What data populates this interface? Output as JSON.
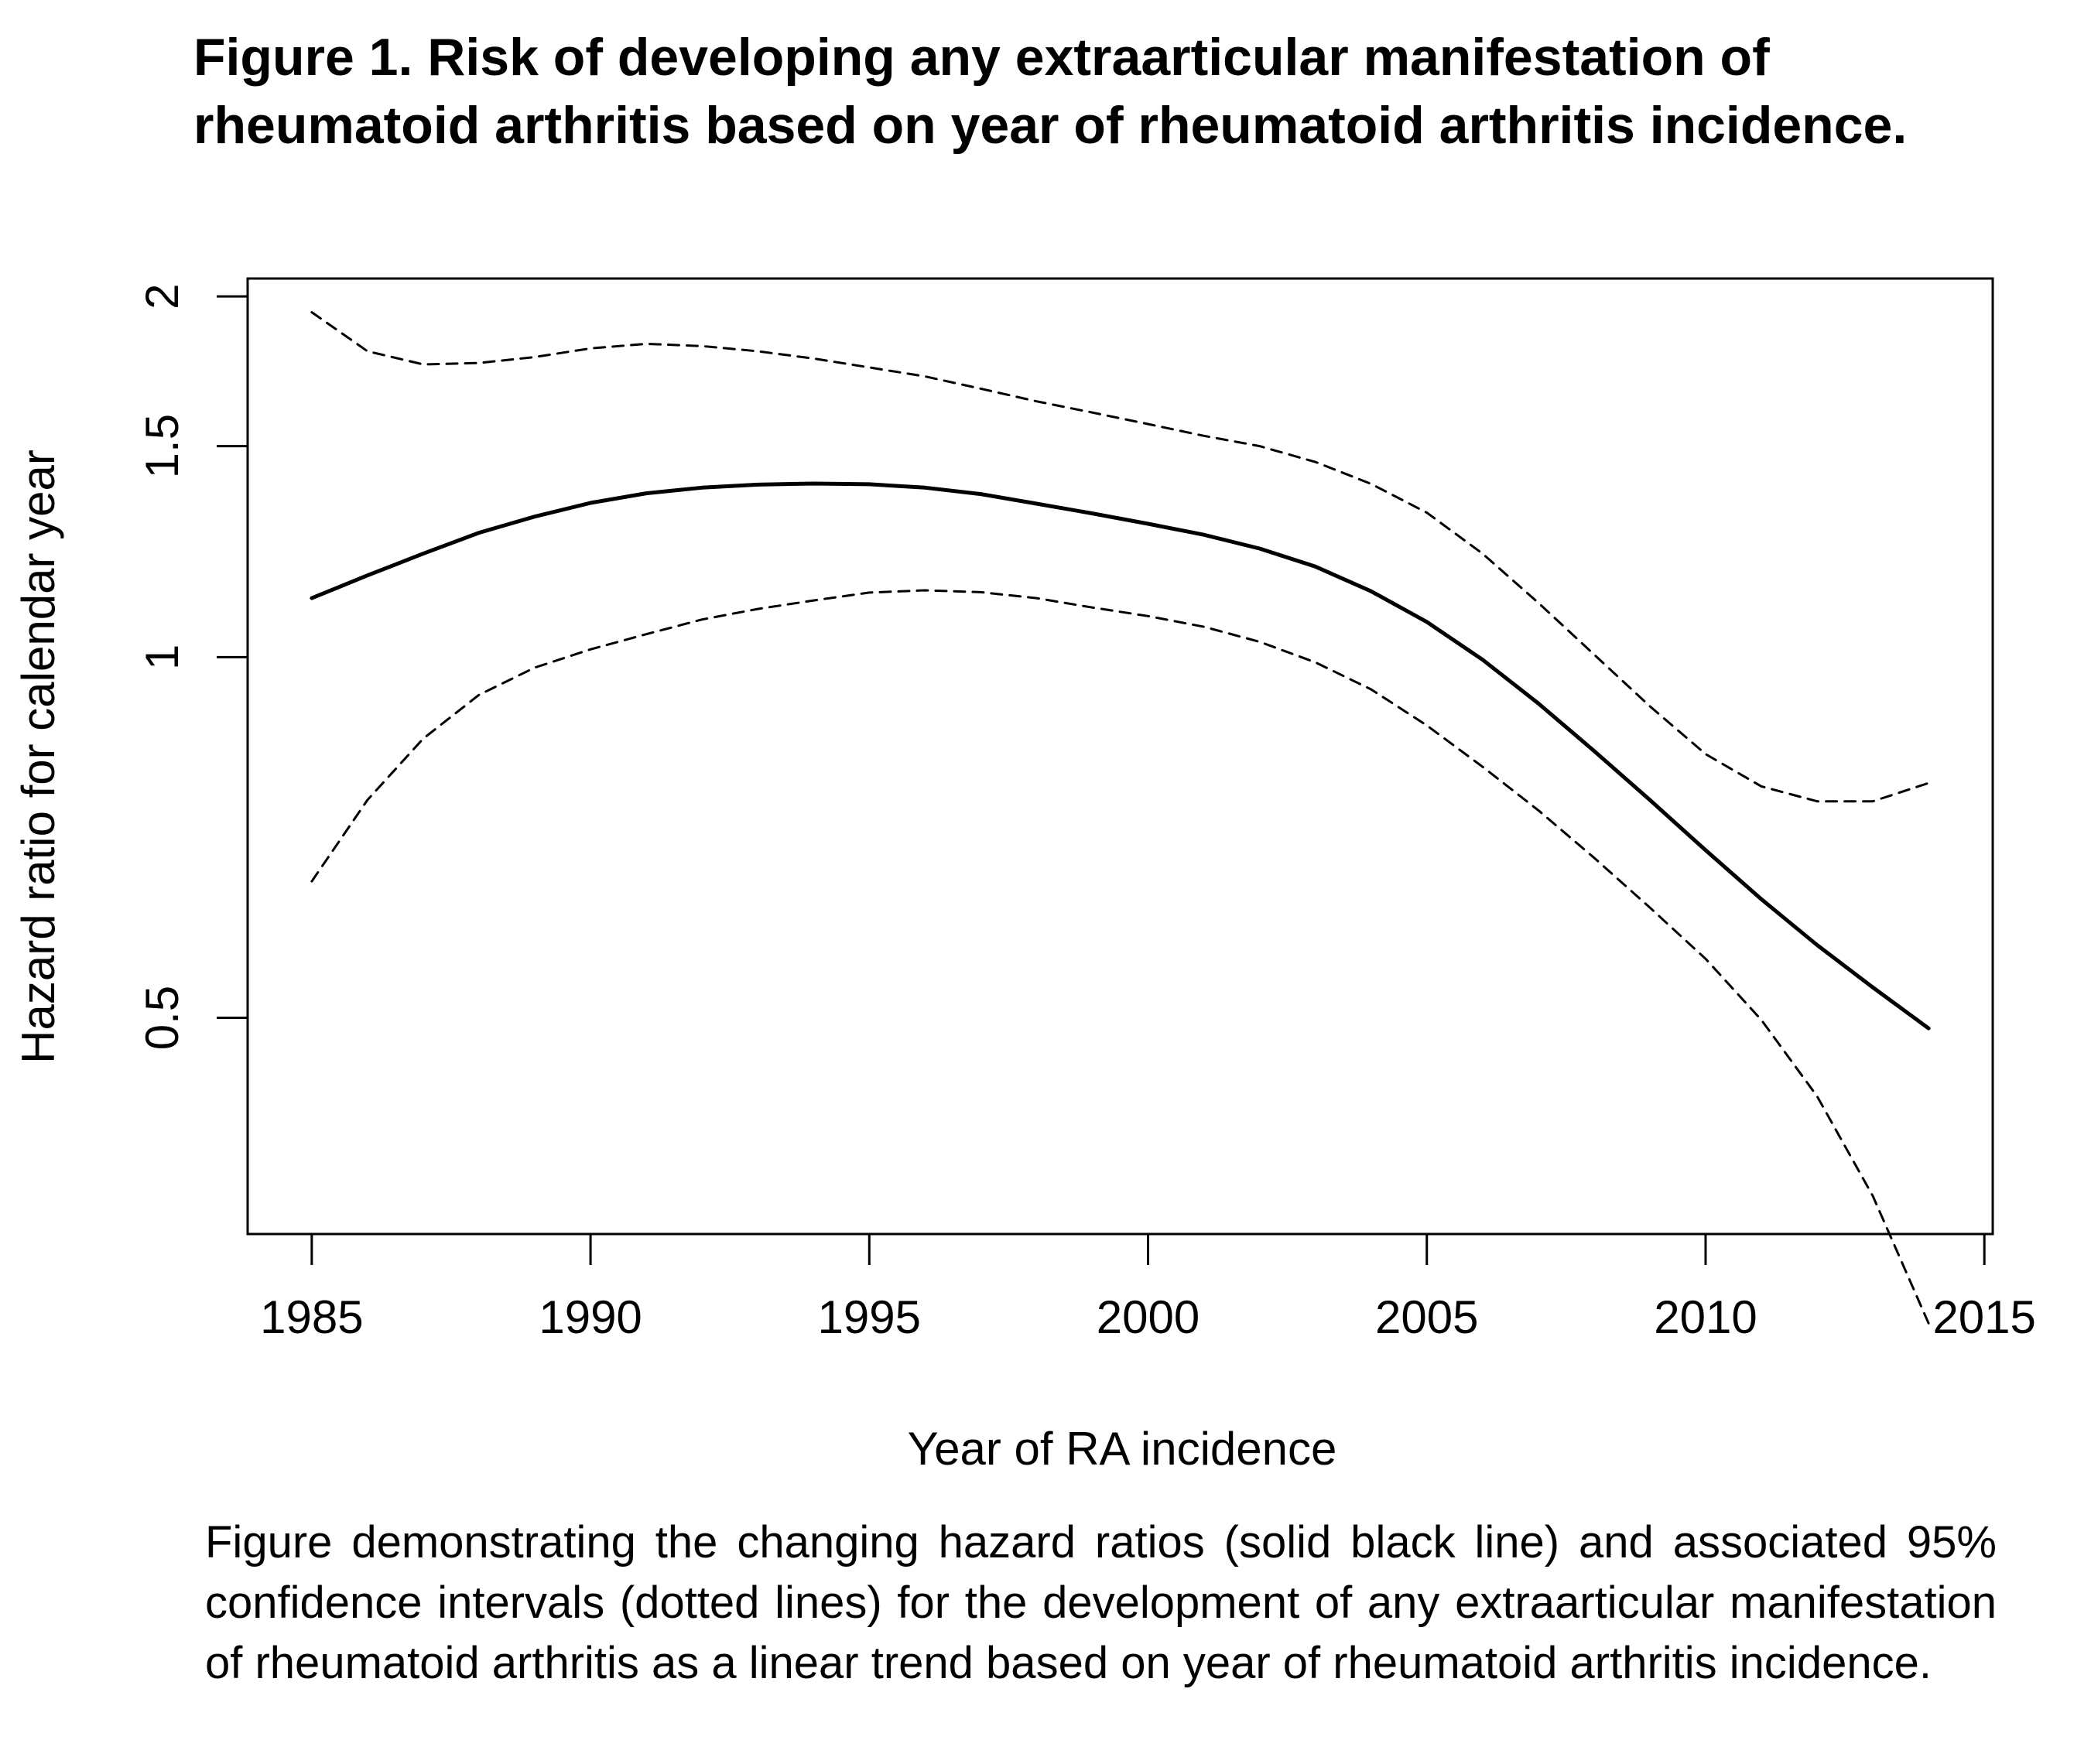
{
  "figure": {
    "title": "Figure 1. Risk of developing any extraarticular manifestation of rheumatoid arthritis based on year of rheumatoid arthritis incidence.",
    "caption": "Figure demonstrating the changing hazard ratios (solid black line) and associated 95% confidence intervals (dotted lines) for the development of any extraarticular manifestation of rheumatoid arthritis as a linear trend based on year of rheumatoid arthritis incidence."
  },
  "chart_data": {
    "type": "line",
    "xlabel": "Year of RA incidence",
    "ylabel": "Hazard ratio for calendar year",
    "y_scale": "log",
    "x_ticks": [
      1985,
      1990,
      1995,
      2000,
      2005,
      2010,
      2015
    ],
    "y_ticks": [
      0.5,
      1,
      1.5,
      2
    ],
    "y_tick_labels": [
      "0.5",
      "1",
      "1.5",
      "2"
    ],
    "xlim": [
      1983.85,
      2015.15
    ],
    "ylim": [
      0.33,
      2.07
    ],
    "legend": "none",
    "grid": false,
    "x": [
      1985,
      1986,
      1987,
      1988,
      1989,
      1990,
      1991,
      1992,
      1993,
      1994,
      1995,
      1996,
      1997,
      1998,
      1999,
      2000,
      2001,
      2002,
      2003,
      2004,
      2005,
      2006,
      2007,
      2008,
      2009,
      2010,
      2011,
      2012,
      2013,
      2014
    ],
    "series": [
      {
        "style": "solid",
        "values": [
          1.12,
          1.17,
          1.22,
          1.27,
          1.31,
          1.345,
          1.37,
          1.385,
          1.393,
          1.396,
          1.394,
          1.385,
          1.368,
          1.343,
          1.318,
          1.292,
          1.265,
          1.232,
          1.19,
          1.135,
          1.07,
          0.995,
          0.915,
          0.835,
          0.76,
          0.69,
          0.628,
          0.575,
          0.53,
          0.49
        ]
      },
      {
        "style": "dashed",
        "values": [
          1.94,
          1.8,
          1.755,
          1.76,
          1.78,
          1.81,
          1.826,
          1.818,
          1.8,
          1.775,
          1.745,
          1.715,
          1.675,
          1.635,
          1.6,
          1.565,
          1.53,
          1.5,
          1.455,
          1.395,
          1.32,
          1.22,
          1.11,
          1.005,
          0.91,
          0.83,
          0.78,
          0.758,
          0.758,
          0.785
        ]
      },
      {
        "style": "dashed",
        "values": [
          0.65,
          0.76,
          0.855,
          0.93,
          0.98,
          1.015,
          1.045,
          1.075,
          1.097,
          1.115,
          1.132,
          1.137,
          1.133,
          1.12,
          1.1,
          1.082,
          1.06,
          1.03,
          0.99,
          0.94,
          0.877,
          0.81,
          0.745,
          0.68,
          0.618,
          0.56,
          0.498,
          0.43,
          0.355,
          0.278
        ]
      }
    ]
  }
}
